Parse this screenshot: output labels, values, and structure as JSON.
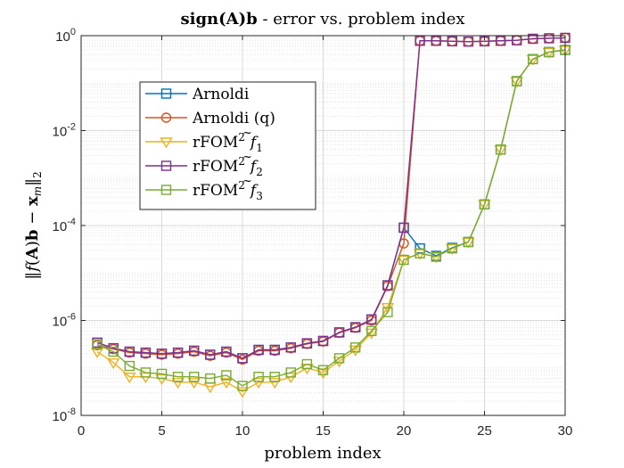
{
  "chart_data": {
    "type": "line",
    "title": "sign(A)b - error vs. problem index",
    "title_parts": {
      "bold": "sign(A)b",
      "rest": " - error vs. problem index"
    },
    "xlabel": "problem index",
    "ylabel": "‖f(A)b − x_m‖_2",
    "xlim": [
      0,
      30
    ],
    "ylim": [
      1e-08,
      1
    ],
    "yscale": "log",
    "grid": true,
    "minor_grid": true,
    "legend_position": "upper-left-inside",
    "xticks": [
      0,
      5,
      10,
      15,
      20,
      25,
      30
    ],
    "yticks": [
      {
        "value": 1e-08,
        "base": "10",
        "exp": "-8"
      },
      {
        "value": 1e-06,
        "base": "10",
        "exp": "-6"
      },
      {
        "value": 0.0001,
        "base": "10",
        "exp": "-4"
      },
      {
        "value": 0.01,
        "base": "10",
        "exp": "-2"
      },
      {
        "value": 1,
        "base": "10",
        "exp": "0"
      }
    ],
    "x": [
      1,
      2,
      3,
      4,
      5,
      6,
      7,
      8,
      9,
      10,
      11,
      12,
      13,
      14,
      15,
      16,
      17,
      18,
      19,
      20,
      21,
      22,
      23,
      24,
      25,
      26,
      27,
      28,
      29,
      30
    ],
    "series": [
      {
        "name": "Arnoldi",
        "label_main": "Arnoldi",
        "label_sup": "",
        "label_f": "",
        "label_sub": "",
        "color": "#0072BD",
        "marker": "square",
        "values": [
          3.4e-07,
          2.6e-07,
          2.2e-07,
          2.1e-07,
          2e-07,
          2.1e-07,
          2.3e-07,
          1.9e-07,
          2.2e-07,
          1.6e-07,
          2.4e-07,
          2.4e-07,
          2.7e-07,
          3.3e-07,
          3.7e-07,
          5.6e-07,
          7.2e-07,
          1.05e-06,
          5.5e-06,
          9e-05,
          3.3e-05,
          2.3e-05,
          3.4e-05,
          4.5e-05,
          0.00028,
          0.004,
          0.11,
          0.32,
          0.45,
          0.5
        ]
      },
      {
        "name": "Arnoldi (q)",
        "label_main": "Arnoldi (q)",
        "label_sup": "",
        "label_f": "",
        "label_sub": "",
        "color": "#D95319",
        "marker": "circle",
        "values": [
          3e-07,
          2.5e-07,
          2.1e-07,
          2e-07,
          1.9e-07,
          2e-07,
          2.2e-07,
          1.8e-07,
          2.1e-07,
          1.5e-07,
          2.3e-07,
          2.3e-07,
          2.6e-07,
          3.2e-07,
          3.6e-07,
          5.5e-07,
          7e-07,
          1e-06,
          5.3e-06,
          4.2e-05,
          0.78,
          0.78,
          0.76,
          0.75,
          0.76,
          0.78,
          0.8,
          0.86,
          0.88,
          0.9
        ]
      },
      {
        "name": "rFOM² f̃₁",
        "label_main": "rFOM",
        "label_sup": "2",
        "label_f": "f",
        "label_sub": "1",
        "color": "#EDB120",
        "marker": "triangle-down",
        "values": [
          2.2e-07,
          1.3e-07,
          6.5e-08,
          6.5e-08,
          6e-08,
          5e-08,
          5e-08,
          4e-08,
          5e-08,
          3.2e-08,
          5e-08,
          5e-08,
          6.5e-08,
          1e-07,
          8e-08,
          1.4e-07,
          2.4e-07,
          5.5e-07,
          1.9e-06,
          1.9e-05,
          2.6e-05,
          2.2e-05,
          3.3e-05,
          4.5e-05,
          0.00028,
          0.004,
          0.11,
          0.32,
          0.45,
          0.5
        ]
      },
      {
        "name": "rFOM² f̃₂",
        "label_main": "rFOM",
        "label_sup": "2",
        "label_f": "f",
        "label_sub": "2",
        "color": "#7E2F8E",
        "marker": "square",
        "values": [
          3.4e-07,
          2.6e-07,
          2.2e-07,
          2.1e-07,
          2e-07,
          2.1e-07,
          2.3e-07,
          1.9e-07,
          2.2e-07,
          1.6e-07,
          2.4e-07,
          2.4e-07,
          2.7e-07,
          3.3e-07,
          3.7e-07,
          5.6e-07,
          7.2e-07,
          1.05e-06,
          5.5e-06,
          9e-05,
          0.78,
          0.78,
          0.76,
          0.75,
          0.76,
          0.78,
          0.8,
          0.86,
          0.88,
          0.9
        ]
      },
      {
        "name": "rFOM² f̃₃",
        "label_main": "rFOM",
        "label_sup": "2",
        "label_f": "f",
        "label_sub": "3",
        "color": "#77AC30",
        "marker": "square",
        "values": [
          3.1e-07,
          2.2e-07,
          1.1e-07,
          8e-08,
          7.5e-08,
          6.5e-08,
          6.5e-08,
          6e-08,
          7e-08,
          4.2e-08,
          6.5e-08,
          6.5e-08,
          8e-08,
          1.2e-07,
          9e-08,
          1.6e-07,
          2.7e-07,
          6e-07,
          1.5e-06,
          1.9e-05,
          2.6e-05,
          2.2e-05,
          3.3e-05,
          4.5e-05,
          0.00028,
          0.004,
          0.11,
          0.32,
          0.45,
          0.5
        ]
      }
    ]
  }
}
